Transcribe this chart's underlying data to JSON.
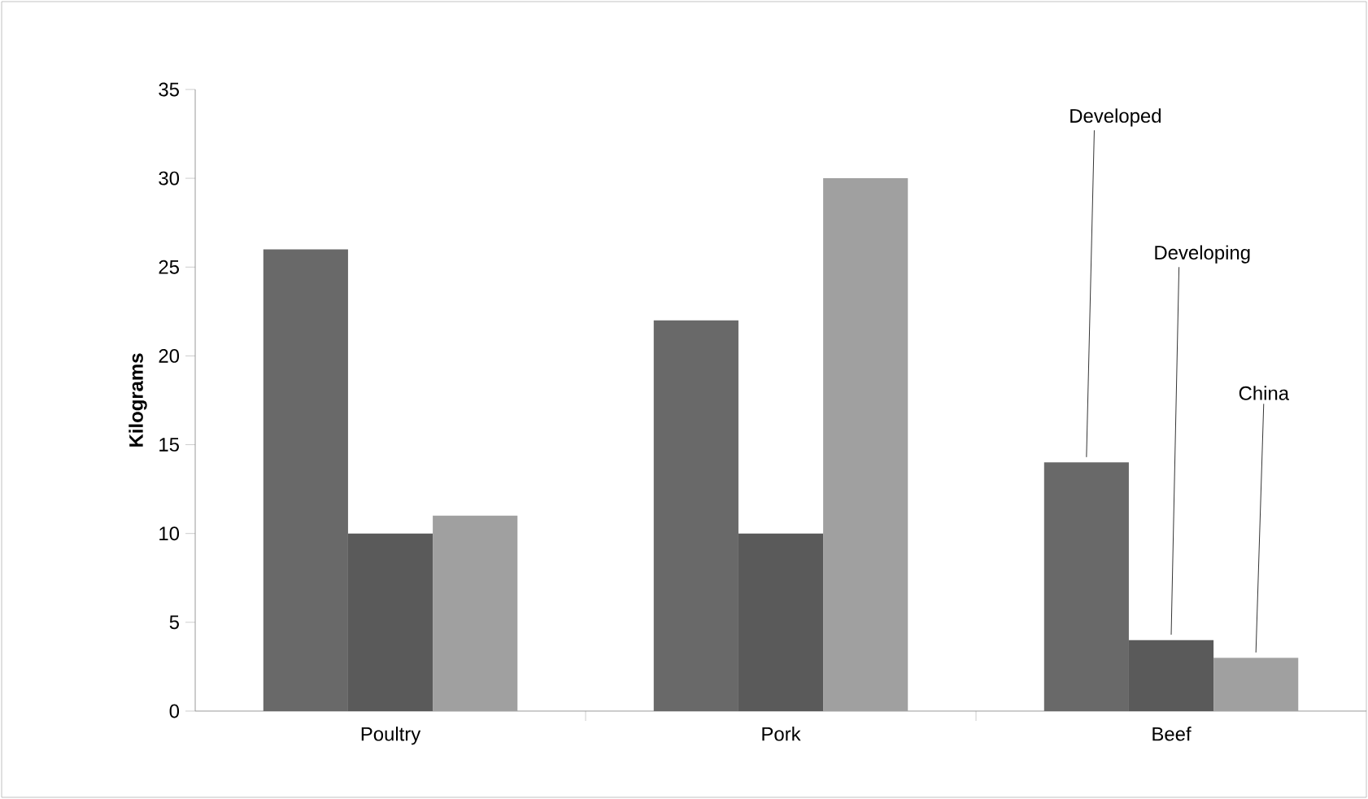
{
  "chart_data": {
    "type": "bar",
    "ylabel": "Kilograms",
    "categories": [
      "Poultry",
      "Pork",
      "Beef"
    ],
    "series": [
      {
        "name": "Developed",
        "color": "#696969",
        "values": [
          26,
          22,
          14
        ]
      },
      {
        "name": "Developing",
        "color": "#5a5a5a",
        "values": [
          10,
          10,
          4
        ]
      },
      {
        "name": "China",
        "color": "#a0a0a0",
        "values": [
          11,
          30,
          3
        ]
      }
    ],
    "ylim": [
      0,
      35
    ],
    "yticks": [
      0,
      5,
      10,
      15,
      20,
      25,
      30,
      35
    ]
  }
}
